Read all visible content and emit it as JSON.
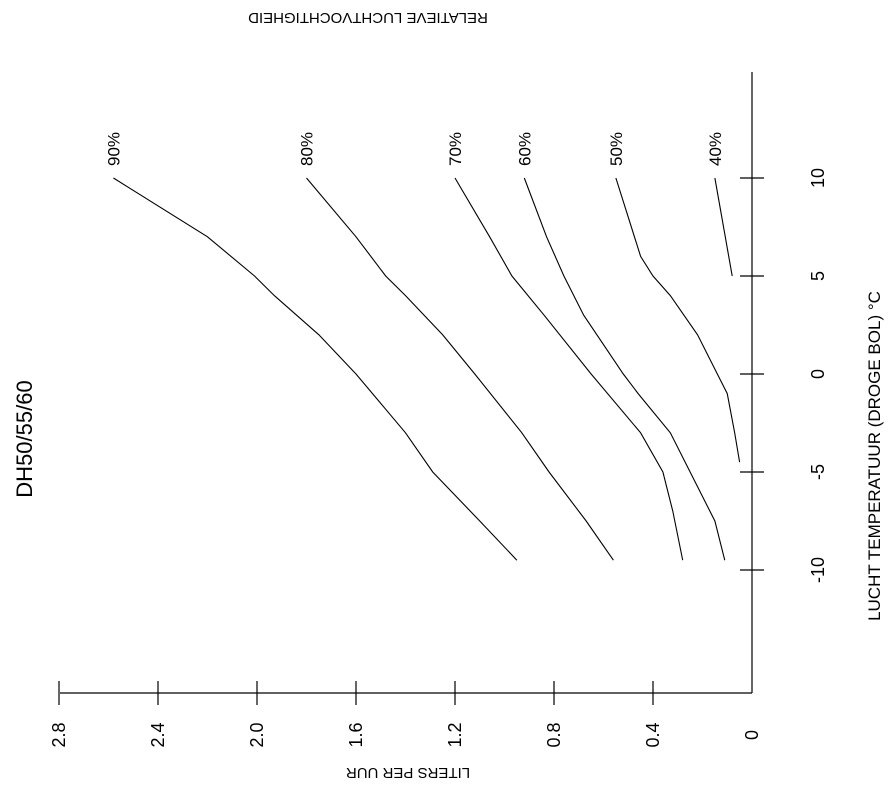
{
  "chart_data": {
    "type": "line",
    "orientation": "rotated-90-ccw",
    "title": "DH50/55/60",
    "xlabel": "LUCHT TEMPERATUUR (DROGE BOL)  °C",
    "ylabel": "LITERS PER UUR",
    "top_label": "RELATIEVE LUCHTVOCHTIGHEID",
    "x_ticks": [
      -10,
      -5,
      0,
      5,
      10
    ],
    "x_tick_labels": [
      "-10",
      "-5",
      "0",
      "5",
      "10"
    ],
    "y_ticks": [
      0,
      0.4,
      0.8,
      1.2,
      1.6,
      2.0,
      2.4,
      2.8
    ],
    "y_tick_labels": [
      "0",
      "0.4",
      "0.8",
      "1.2",
      "1.6",
      "2.0",
      "2.4",
      "2.8"
    ],
    "xlim": [
      -14,
      14
    ],
    "ylim": [
      0,
      2.8
    ],
    "grid": false,
    "series": [
      {
        "name": "90%",
        "x": [
          -9.5,
          -7.5,
          -5,
          -3,
          0,
          2,
          4,
          5,
          7,
          10
        ],
        "y": [
          0.95,
          1.1,
          1.29,
          1.4,
          1.6,
          1.75,
          1.93,
          2.01,
          2.2,
          2.58
        ]
      },
      {
        "name": "80%",
        "x": [
          -9.5,
          -7.5,
          -5,
          -3,
          0,
          2,
          4,
          5,
          7,
          10
        ],
        "y": [
          0.56,
          0.67,
          0.82,
          0.93,
          1.12,
          1.25,
          1.4,
          1.48,
          1.6,
          1.8
        ]
      },
      {
        "name": "70%",
        "x": [
          -9.5,
          -7,
          -5,
          -3,
          0,
          3,
          5,
          7,
          10
        ],
        "y": [
          0.28,
          0.32,
          0.36,
          0.45,
          0.65,
          0.84,
          0.97,
          1.06,
          1.2
        ]
      },
      {
        "name": "60%",
        "x": [
          -9.5,
          -7.5,
          -5,
          -3,
          -1,
          0,
          3,
          5,
          7,
          10
        ],
        "y": [
          0.11,
          0.15,
          0.25,
          0.33,
          0.46,
          0.52,
          0.68,
          0.76,
          0.83,
          0.92
        ]
      },
      {
        "name": "50%",
        "x": [
          -4.5,
          -3,
          -1,
          0,
          2,
          4,
          5,
          6,
          8,
          10
        ],
        "y": [
          0.05,
          0.07,
          0.1,
          0.14,
          0.22,
          0.33,
          0.4,
          0.45,
          0.5,
          0.55
        ]
      },
      {
        "name": "40%",
        "x": [
          5,
          10
        ],
        "y": [
          0.08,
          0.15
        ]
      }
    ]
  }
}
